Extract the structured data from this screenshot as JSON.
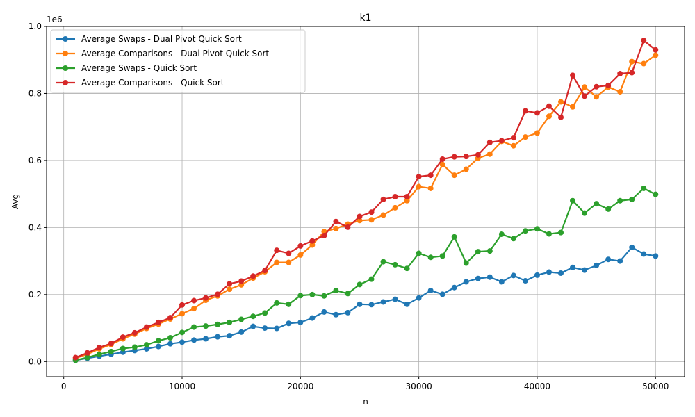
{
  "chart_data": {
    "type": "line",
    "title": "k1",
    "xlabel": "n",
    "ylabel": "Avg",
    "y_offset_text": "1e6",
    "xlim": [
      -1450,
      52450
    ],
    "ylim": [
      -0.045,
      1.0
    ],
    "xticks": [
      0,
      10000,
      20000,
      30000,
      40000,
      50000
    ],
    "xtick_labels": [
      "0",
      "10000",
      "20000",
      "30000",
      "40000",
      "50000"
    ],
    "yticks": [
      0.0,
      0.2,
      0.4,
      0.6,
      0.8,
      1.0
    ],
    "ytick_labels": [
      "0.0",
      "0.2",
      "0.4",
      "0.6",
      "0.8",
      "1.0"
    ],
    "grid": true,
    "legend_position": "upper-left",
    "x": [
      1000,
      2000,
      3000,
      4000,
      5000,
      6000,
      7000,
      8000,
      9000,
      10000,
      11000,
      12000,
      13000,
      14000,
      15000,
      16000,
      17000,
      18000,
      19000,
      20000,
      21000,
      22000,
      23000,
      24000,
      25000,
      26000,
      27000,
      28000,
      29000,
      30000,
      31000,
      32000,
      33000,
      34000,
      35000,
      36000,
      37000,
      38000,
      39000,
      40000,
      41000,
      42000,
      43000,
      44000,
      45000,
      46000,
      47000,
      48000,
      49000,
      50000
    ],
    "series": [
      {
        "name": "Average Swaps - Dual Pivot Quick Sort",
        "color": "#1f77b4",
        "values": [
          0.004,
          0.01,
          0.016,
          0.022,
          0.028,
          0.033,
          0.038,
          0.045,
          0.053,
          0.058,
          0.064,
          0.068,
          0.074,
          0.077,
          0.088,
          0.105,
          0.1,
          0.099,
          0.114,
          0.117,
          0.13,
          0.148,
          0.14,
          0.146,
          0.171,
          0.17,
          0.178,
          0.186,
          0.171,
          0.19,
          0.212,
          0.201,
          0.221,
          0.238,
          0.248,
          0.252,
          0.238,
          0.257,
          0.241,
          0.258,
          0.267,
          0.264,
          0.281,
          0.273,
          0.287,
          0.305,
          0.3,
          0.341,
          0.321,
          0.315
        ]
      },
      {
        "name": "Average Comparisons - Dual Pivot Quick Sort",
        "color": "#ff7f0e",
        "values": [
          0.01,
          0.022,
          0.038,
          0.051,
          0.068,
          0.082,
          0.099,
          0.112,
          0.127,
          0.143,
          0.158,
          0.183,
          0.196,
          0.216,
          0.229,
          0.249,
          0.268,
          0.296,
          0.296,
          0.318,
          0.348,
          0.388,
          0.397,
          0.41,
          0.421,
          0.423,
          0.437,
          0.459,
          0.48,
          0.522,
          0.517,
          0.588,
          0.556,
          0.574,
          0.607,
          0.619,
          0.657,
          0.644,
          0.67,
          0.682,
          0.732,
          0.775,
          0.76,
          0.819,
          0.79,
          0.819,
          0.805,
          0.895,
          0.889,
          0.914
        ]
      },
      {
        "name": "Average Swaps - Quick Sort",
        "color": "#2ca02c",
        "values": [
          0.004,
          0.012,
          0.022,
          0.03,
          0.039,
          0.043,
          0.05,
          0.062,
          0.071,
          0.087,
          0.103,
          0.106,
          0.111,
          0.117,
          0.126,
          0.135,
          0.145,
          0.175,
          0.171,
          0.197,
          0.2,
          0.196,
          0.212,
          0.203,
          0.23,
          0.246,
          0.298,
          0.289,
          0.278,
          0.323,
          0.311,
          0.315,
          0.372,
          0.294,
          0.328,
          0.33,
          0.38,
          0.367,
          0.39,
          0.396,
          0.381,
          0.385,
          0.48,
          0.443,
          0.471,
          0.455,
          0.48,
          0.484,
          0.517,
          0.499
        ]
      },
      {
        "name": "Average Comparisons - Quick Sort",
        "color": "#d62728",
        "values": [
          0.012,
          0.026,
          0.042,
          0.054,
          0.073,
          0.086,
          0.103,
          0.117,
          0.131,
          0.169,
          0.182,
          0.19,
          0.201,
          0.232,
          0.24,
          0.255,
          0.272,
          0.332,
          0.323,
          0.345,
          0.36,
          0.376,
          0.418,
          0.401,
          0.433,
          0.446,
          0.484,
          0.492,
          0.492,
          0.552,
          0.556,
          0.604,
          0.611,
          0.612,
          0.617,
          0.654,
          0.659,
          0.668,
          0.748,
          0.742,
          0.762,
          0.729,
          0.854,
          0.792,
          0.82,
          0.824,
          0.859,
          0.862,
          0.958,
          0.93
        ]
      }
    ]
  }
}
